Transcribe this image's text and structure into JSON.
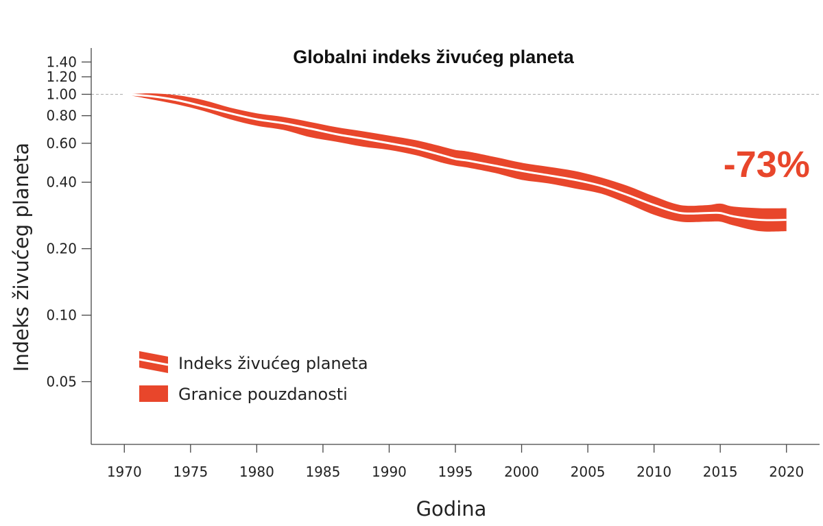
{
  "chart_data": {
    "type": "area",
    "title": "Globalni indeks živućeg planeta",
    "xlabel": "Godina",
    "ylabel": "Indeks živućeg planeta",
    "y_scale": "log",
    "xlim": [
      1967.5,
      2022.5
    ],
    "ylim": [
      0.026,
      1.62
    ],
    "x_ticks": [
      1970,
      1975,
      1980,
      1985,
      1990,
      1995,
      2000,
      2005,
      2010,
      2015,
      2020
    ],
    "x_tick_labels": [
      "1970",
      "1975",
      "1980",
      "1985",
      "1990",
      "1995",
      "2000",
      "2005",
      "2010",
      "2015",
      "2020"
    ],
    "y_ticks": [
      0.05,
      0.1,
      0.2,
      0.4,
      0.6,
      0.8,
      1.0,
      1.2,
      1.4
    ],
    "y_tick_labels": [
      "0.05",
      "0.10",
      "0.20",
      "0.40",
      "0.60",
      "0.80",
      "1.00",
      "1.20",
      "1.40"
    ],
    "reference_line": 1.0,
    "grid": false,
    "legend_position": "bottom-left",
    "legend": [
      {
        "label": "Indeks živućeg planeta",
        "kind": "line"
      },
      {
        "label": "Granice pouzdanosti",
        "kind": "band"
      }
    ],
    "annotation": {
      "text": "-73%",
      "x": 2018.5
    },
    "colors": {
      "band": "#e8462b",
      "line": "#ffffff",
      "annotation": "#e8462b",
      "reference": "#aaaaaa",
      "axis": "#444444"
    },
    "x": [
      1970,
      1972,
      1974,
      1976,
      1978,
      1980,
      1982,
      1984,
      1986,
      1988,
      1990,
      1992,
      1994,
      1995,
      1996,
      1998,
      2000,
      2002,
      2004,
      2006,
      2008,
      2010,
      2012,
      2014,
      2015,
      2016,
      2018,
      2020
    ],
    "index": [
      1.0,
      0.98,
      0.94,
      0.88,
      0.82,
      0.77,
      0.74,
      0.7,
      0.66,
      0.63,
      0.6,
      0.57,
      0.53,
      0.51,
      0.5,
      0.475,
      0.45,
      0.43,
      0.41,
      0.385,
      0.35,
      0.315,
      0.29,
      0.29,
      0.29,
      0.28,
      0.27,
      0.27
    ],
    "upper": [
      1.0,
      1.01,
      0.99,
      0.94,
      0.87,
      0.82,
      0.79,
      0.75,
      0.71,
      0.68,
      0.65,
      0.62,
      0.58,
      0.56,
      0.55,
      0.52,
      0.49,
      0.47,
      0.45,
      0.42,
      0.385,
      0.345,
      0.315,
      0.315,
      0.32,
      0.31,
      0.305,
      0.305
    ],
    "lower": [
      1.0,
      0.95,
      0.9,
      0.84,
      0.77,
      0.72,
      0.69,
      0.64,
      0.61,
      0.58,
      0.56,
      0.53,
      0.49,
      0.475,
      0.465,
      0.44,
      0.41,
      0.395,
      0.375,
      0.355,
      0.32,
      0.285,
      0.265,
      0.265,
      0.265,
      0.255,
      0.24,
      0.24
    ]
  }
}
